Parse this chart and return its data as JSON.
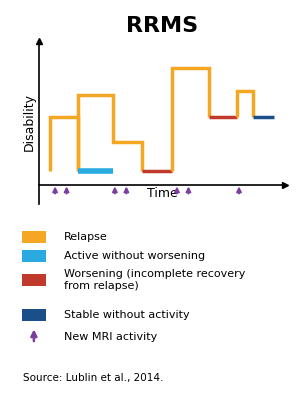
{
  "title": "RRMS",
  "xlabel": "Time",
  "ylabel": "Disability",
  "title_fontsize": 16,
  "axis_label_fontsize": 9,
  "legend_fontsize": 8,
  "source_fontsize": 7.5,
  "source_text": "Source: Lublin et al., 2014.",
  "colors": {
    "orange": "#F5A623",
    "cyan": "#29ABE2",
    "red": "#C0392B",
    "dark_blue": "#1B4F8A",
    "purple": "#7B3FA0"
  },
  "segments": [
    {
      "x": [
        0.05,
        0.05,
        0.17,
        0.17
      ],
      "y": [
        0.08,
        0.38,
        0.38,
        0.08
      ],
      "color": "#F5A623"
    },
    {
      "x": [
        0.17,
        0.17,
        0.32,
        0.32,
        0.45,
        0.45
      ],
      "y": [
        0.08,
        0.5,
        0.5,
        0.24,
        0.24,
        0.08
      ],
      "color": "#F5A623"
    },
    {
      "x": [
        0.45,
        0.58
      ],
      "y": [
        0.08,
        0.08
      ],
      "color": "#C0392B"
    },
    {
      "x": [
        0.58,
        0.58,
        0.74,
        0.74
      ],
      "y": [
        0.08,
        0.65,
        0.65,
        0.38
      ],
      "color": "#F5A623"
    },
    {
      "x": [
        0.74,
        0.86
      ],
      "y": [
        0.38,
        0.38
      ],
      "color": "#C0392B"
    },
    {
      "x": [
        0.86,
        0.86,
        0.93,
        0.93
      ],
      "y": [
        0.38,
        0.52,
        0.52,
        0.38
      ],
      "color": "#F5A623"
    },
    {
      "x": [
        0.93,
        1.02
      ],
      "y": [
        0.38,
        0.38
      ],
      "color": "#1B4F8A"
    }
  ],
  "cyan_segment": {
    "x": [
      0.17,
      0.32
    ],
    "y": [
      0.08,
      0.08
    ]
  },
  "mri_arrows": [
    0.07,
    0.12,
    0.33,
    0.38,
    0.6,
    0.65,
    0.87
  ],
  "legend_items": [
    {
      "label": "Relapse",
      "color": "#F5A623",
      "type": "patch"
    },
    {
      "label": "Active without worsening",
      "color": "#29ABE2",
      "type": "patch"
    },
    {
      "label": "Worsening (incomplete recovery\nfrom relapse)",
      "color": "#C0392B",
      "type": "patch"
    },
    {
      "label": "Stable without activity",
      "color": "#1B4F8A",
      "type": "patch"
    },
    {
      "label": "New MRI activity",
      "color": "#7B3FA0",
      "type": "arrow"
    }
  ]
}
